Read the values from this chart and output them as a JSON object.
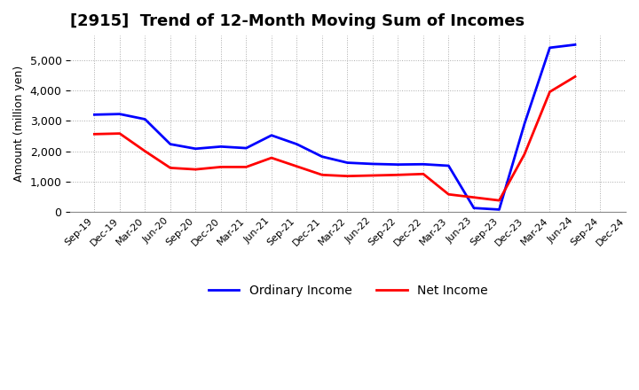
{
  "title": "[2915]  Trend of 12-Month Moving Sum of Incomes",
  "ylabel": "Amount (million yen)",
  "x_labels": [
    "Sep-19",
    "Dec-19",
    "Mar-20",
    "Jun-20",
    "Sep-20",
    "Dec-20",
    "Mar-21",
    "Jun-21",
    "Sep-21",
    "Dec-21",
    "Mar-22",
    "Jun-22",
    "Sep-22",
    "Dec-22",
    "Mar-23",
    "Jun-23",
    "Sep-23",
    "Dec-23",
    "Mar-24",
    "Jun-24",
    "Sep-24",
    "Dec-24"
  ],
  "ordinary_income": [
    3200,
    3220,
    3050,
    2230,
    2080,
    2150,
    2100,
    2520,
    2230,
    1820,
    1620,
    1580,
    1560,
    1570,
    1520,
    130,
    80,
    2900,
    5400,
    5500,
    null,
    null
  ],
  "net_income": [
    2560,
    2580,
    2000,
    1450,
    1400,
    1480,
    1480,
    1780,
    1500,
    1220,
    1180,
    1200,
    1220,
    1250,
    580,
    480,
    380,
    1900,
    3950,
    4450,
    null,
    null
  ],
  "ordinary_income_color": "#0000FF",
  "net_income_color": "#FF0000",
  "ylim": [
    0,
    5800
  ],
  "yticks": [
    0,
    1000,
    2000,
    3000,
    4000,
    5000
  ],
  "background_color": "#FFFFFF",
  "grid_color": "#AAAAAA",
  "title_fontsize": 13,
  "legend_labels": [
    "Ordinary Income",
    "Net Income"
  ]
}
